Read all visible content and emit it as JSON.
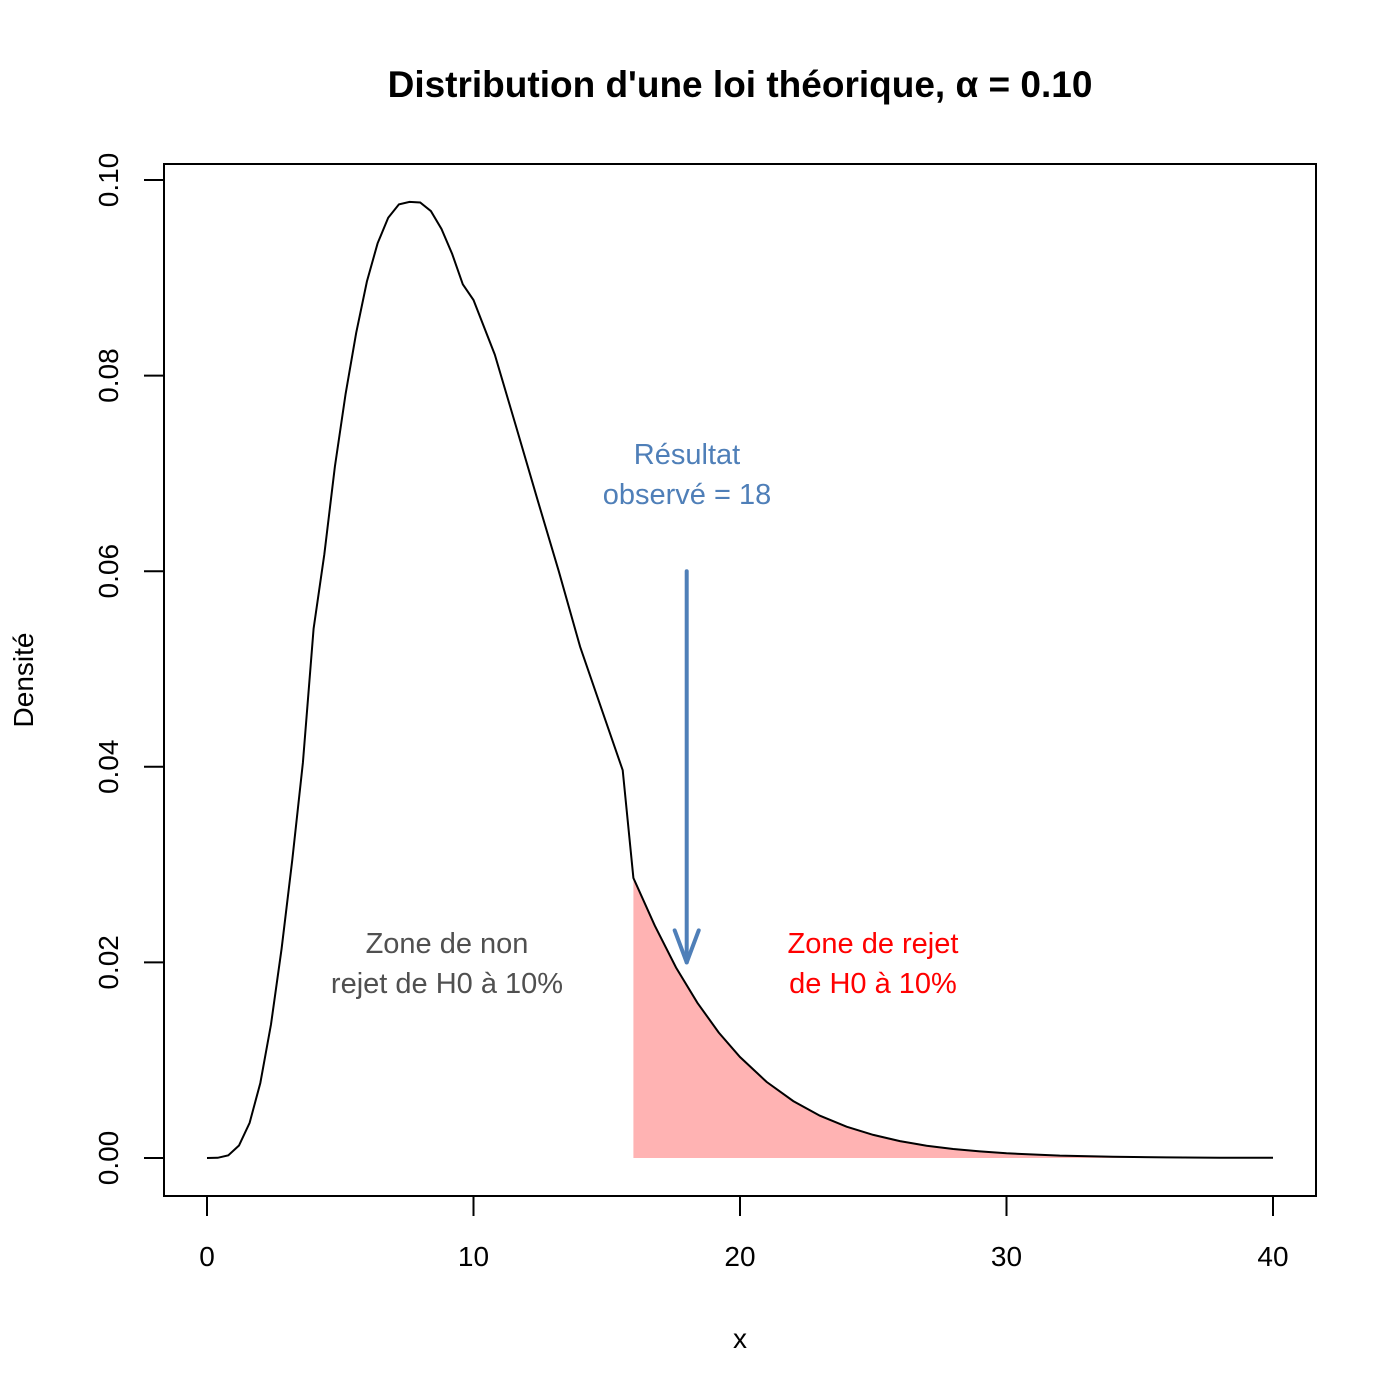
{
  "chart_data": {
    "type": "line",
    "title": "Distribution d'une loi théorique, α = 0.10",
    "xlabel": "x",
    "ylabel": "Densité",
    "xlim": [
      0,
      40
    ],
    "ylim": [
      0,
      0.1
    ],
    "x_ticks": [
      "0",
      "10",
      "20",
      "30",
      "40"
    ],
    "y_ticks": [
      "0.00",
      "0.02",
      "0.04",
      "0.06",
      "0.08",
      "0.10"
    ],
    "grid": false,
    "series": [
      {
        "distribution": "chi-square",
        "df": 10,
        "x": [
          0,
          0.4,
          0.8,
          1.2,
          1.6,
          2,
          2.4,
          2.8,
          3.2,
          3.6,
          4,
          4.4,
          4.8,
          5.2,
          5.6,
          6,
          6.4,
          6.8,
          7.2,
          7.6,
          8,
          8.4,
          8.8,
          9.2,
          9.6,
          10,
          10.8,
          11.6,
          12.4,
          13.2,
          14,
          14.8,
          15.6,
          16,
          16.8,
          17.6,
          18.4,
          19.2,
          20,
          21,
          22,
          23,
          24,
          25,
          26,
          27,
          28,
          29,
          30,
          32,
          34,
          36,
          38,
          40
        ],
        "y": [
          0,
          2e-05,
          0.00028,
          0.00128,
          0.00359,
          0.00766,
          0.01366,
          0.0214,
          0.03049,
          0.04042,
          0.05413,
          0.06171,
          0.07071,
          0.07813,
          0.08438,
          0.08962,
          0.09353,
          0.09613,
          0.09751,
          0.09776,
          0.0977,
          0.09682,
          0.09499,
          0.09243,
          0.08934,
          0.08773,
          0.08215,
          0.07479,
          0.06731,
          0.05999,
          0.05228,
          0.04595,
          0.03965,
          0.02863,
          0.02378,
          0.01948,
          0.01587,
          0.01283,
          0.01033,
          0.00778,
          0.00582,
          0.00433,
          0.0032,
          0.00236,
          0.00173,
          0.00126,
          0.00092,
          0.00067,
          0.00048,
          0.00025,
          0.00013,
          6e-05,
          3e-05,
          2e-05
        ],
        "color": "#000000"
      }
    ],
    "rejection_zone": {
      "from_x": 16,
      "to_x": 40,
      "color": "#ffb3b3"
    },
    "observed": {
      "x": 18,
      "arrow_from_y": 0.06,
      "arrow_to_y": 0.02,
      "color": "#4f7fb8"
    },
    "annotations": {
      "observed_line1": "Résultat",
      "observed_line2": "observé = 18",
      "nonreject_line1": "Zone de non",
      "nonreject_line2": "rejet de H0 à 10%",
      "reject_line1": "Zone de rejet",
      "reject_line2": "de H0 à 10%"
    },
    "colors": {
      "observed": "#4f7fb8",
      "nonreject": "#505050",
      "reject": "#ff0000"
    }
  }
}
